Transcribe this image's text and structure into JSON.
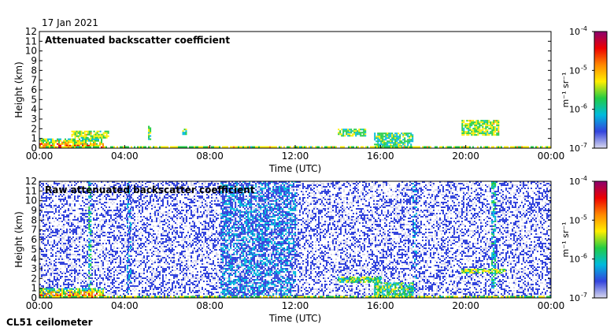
{
  "date": "17 Jan 2021",
  "footer": "CL51 ceilometer",
  "colorbar_unit": "m⁻¹ sr⁻¹",
  "colorscale": [
    "#d9d9ee",
    "#3344dd",
    "#00bbdd",
    "#22cc44",
    "#ffee00",
    "#ff8800",
    "#ee0000",
    "#8b0070"
  ],
  "chart_data": [
    {
      "type": "heatmap",
      "title": "Attenuated backscatter coefficient",
      "xlabel": "Time (UTC)",
      "ylabel": "Height (km)",
      "xlim": [
        "00:00",
        "24:00"
      ],
      "xticks": [
        "00:00",
        "04:00",
        "08:00",
        "12:00",
        "16:00",
        "20:00",
        "00:00"
      ],
      "ylim": [
        0,
        12
      ],
      "yticks": [
        "0",
        "1",
        "2",
        "3",
        "4",
        "5",
        "6",
        "7",
        "8",
        "9",
        "10",
        "11",
        "12"
      ],
      "colorbar": {
        "scale": "log",
        "range": [
          1e-07,
          0.0001
        ],
        "ticks": [
          "10",
          "10",
          "10",
          "10"
        ],
        "exponents": [
          "-7",
          "-6",
          "-5",
          "-4"
        ]
      },
      "features": [
        {
          "kind": "aerosol layer",
          "time_start": 0.0,
          "time_end": 3.0,
          "height_bottom_km": 0.0,
          "height_top_km": 1.0,
          "level": 0.8
        },
        {
          "kind": "sparse cloud",
          "time_start": 1.5,
          "time_end": 3.2,
          "height_bottom_km": 1.0,
          "height_top_km": 1.8,
          "level": 0.5
        },
        {
          "kind": "isolated cloud",
          "time_start": 5.1,
          "time_end": 5.2,
          "height_bottom_km": 1.0,
          "height_top_km": 2.3,
          "level": 0.45
        },
        {
          "kind": "isolated cloud",
          "time_start": 6.7,
          "time_end": 6.9,
          "height_bottom_km": 1.5,
          "height_top_km": 2.0,
          "level": 0.45
        },
        {
          "kind": "cloud",
          "time_start": 14.0,
          "time_end": 15.3,
          "height_bottom_km": 1.2,
          "height_top_km": 2.0,
          "level": 0.45
        },
        {
          "kind": "cloud",
          "time_start": 15.7,
          "time_end": 17.5,
          "height_bottom_km": 0.0,
          "height_top_km": 1.6,
          "level": 0.4
        },
        {
          "kind": "cloud",
          "time_start": 19.8,
          "time_end": 21.5,
          "height_bottom_km": 1.3,
          "height_top_km": 2.9,
          "level": 0.5
        },
        {
          "kind": "surface layer",
          "time_start": 0.0,
          "time_end": 24.0,
          "height_bottom_km": 0.0,
          "height_top_km": 0.2,
          "level": 0.5
        }
      ]
    },
    {
      "type": "heatmap",
      "title": "Raw attenuated backscatter coefficient",
      "xlabel": "Time (UTC)",
      "ylabel": "Height (km)",
      "xlim": [
        "00:00",
        "24:00"
      ],
      "xticks": [
        "00:00",
        "04:00",
        "08:00",
        "12:00",
        "16:00",
        "20:00",
        "00:00"
      ],
      "ylim": [
        0,
        12
      ],
      "yticks": [
        "0",
        "1",
        "2",
        "3",
        "4",
        "5",
        "6",
        "7",
        "8",
        "9",
        "10",
        "11",
        "12"
      ],
      "colorbar": {
        "scale": "log",
        "range": [
          1e-07,
          0.0001
        ],
        "ticks": [
          "10",
          "10",
          "10",
          "10"
        ],
        "exponents": [
          "-7",
          "-6",
          "-5",
          "-4"
        ]
      },
      "features": [
        {
          "kind": "background noise",
          "time_start": 0.0,
          "time_end": 24.0,
          "height_bottom_km": 0.0,
          "height_top_km": 12.0,
          "level": 0.1
        },
        {
          "kind": "noise band",
          "time_start": 8.5,
          "time_end": 12.0,
          "height_bottom_km": 0.0,
          "height_top_km": 12.0,
          "level": 0.2
        },
        {
          "kind": "noise streak",
          "time_start": 4.1,
          "time_end": 4.3,
          "height_bottom_km": 0.5,
          "height_top_km": 12.0,
          "level": 0.2
        },
        {
          "kind": "noise streak",
          "time_start": 17.5,
          "time_end": 17.7,
          "height_bottom_km": 0.5,
          "height_top_km": 12.0,
          "level": 0.2
        },
        {
          "kind": "noise streak",
          "time_start": 2.3,
          "time_end": 2.4,
          "height_bottom_km": 1.0,
          "height_top_km": 12.0,
          "level": 0.35
        },
        {
          "kind": "noise streak",
          "time_start": 21.2,
          "time_end": 21.4,
          "height_bottom_km": 1.0,
          "height_top_km": 12.0,
          "level": 0.3
        },
        {
          "kind": "aerosol layer",
          "time_start": 0.0,
          "time_end": 3.0,
          "height_bottom_km": 0.0,
          "height_top_km": 1.0,
          "level": 0.8
        },
        {
          "kind": "cloud",
          "time_start": 14.0,
          "time_end": 16.0,
          "height_bottom_km": 1.7,
          "height_top_km": 2.2,
          "level": 0.45
        },
        {
          "kind": "cloud",
          "time_start": 15.7,
          "time_end": 17.5,
          "height_bottom_km": 0.0,
          "height_top_km": 1.6,
          "level": 0.4
        },
        {
          "kind": "cloud",
          "time_start": 19.8,
          "time_end": 21.8,
          "height_bottom_km": 2.6,
          "height_top_km": 3.0,
          "level": 0.5
        },
        {
          "kind": "surface layer",
          "time_start": 0.0,
          "time_end": 24.0,
          "height_bottom_km": 0.0,
          "height_top_km": 0.2,
          "level": 0.5
        }
      ]
    }
  ]
}
